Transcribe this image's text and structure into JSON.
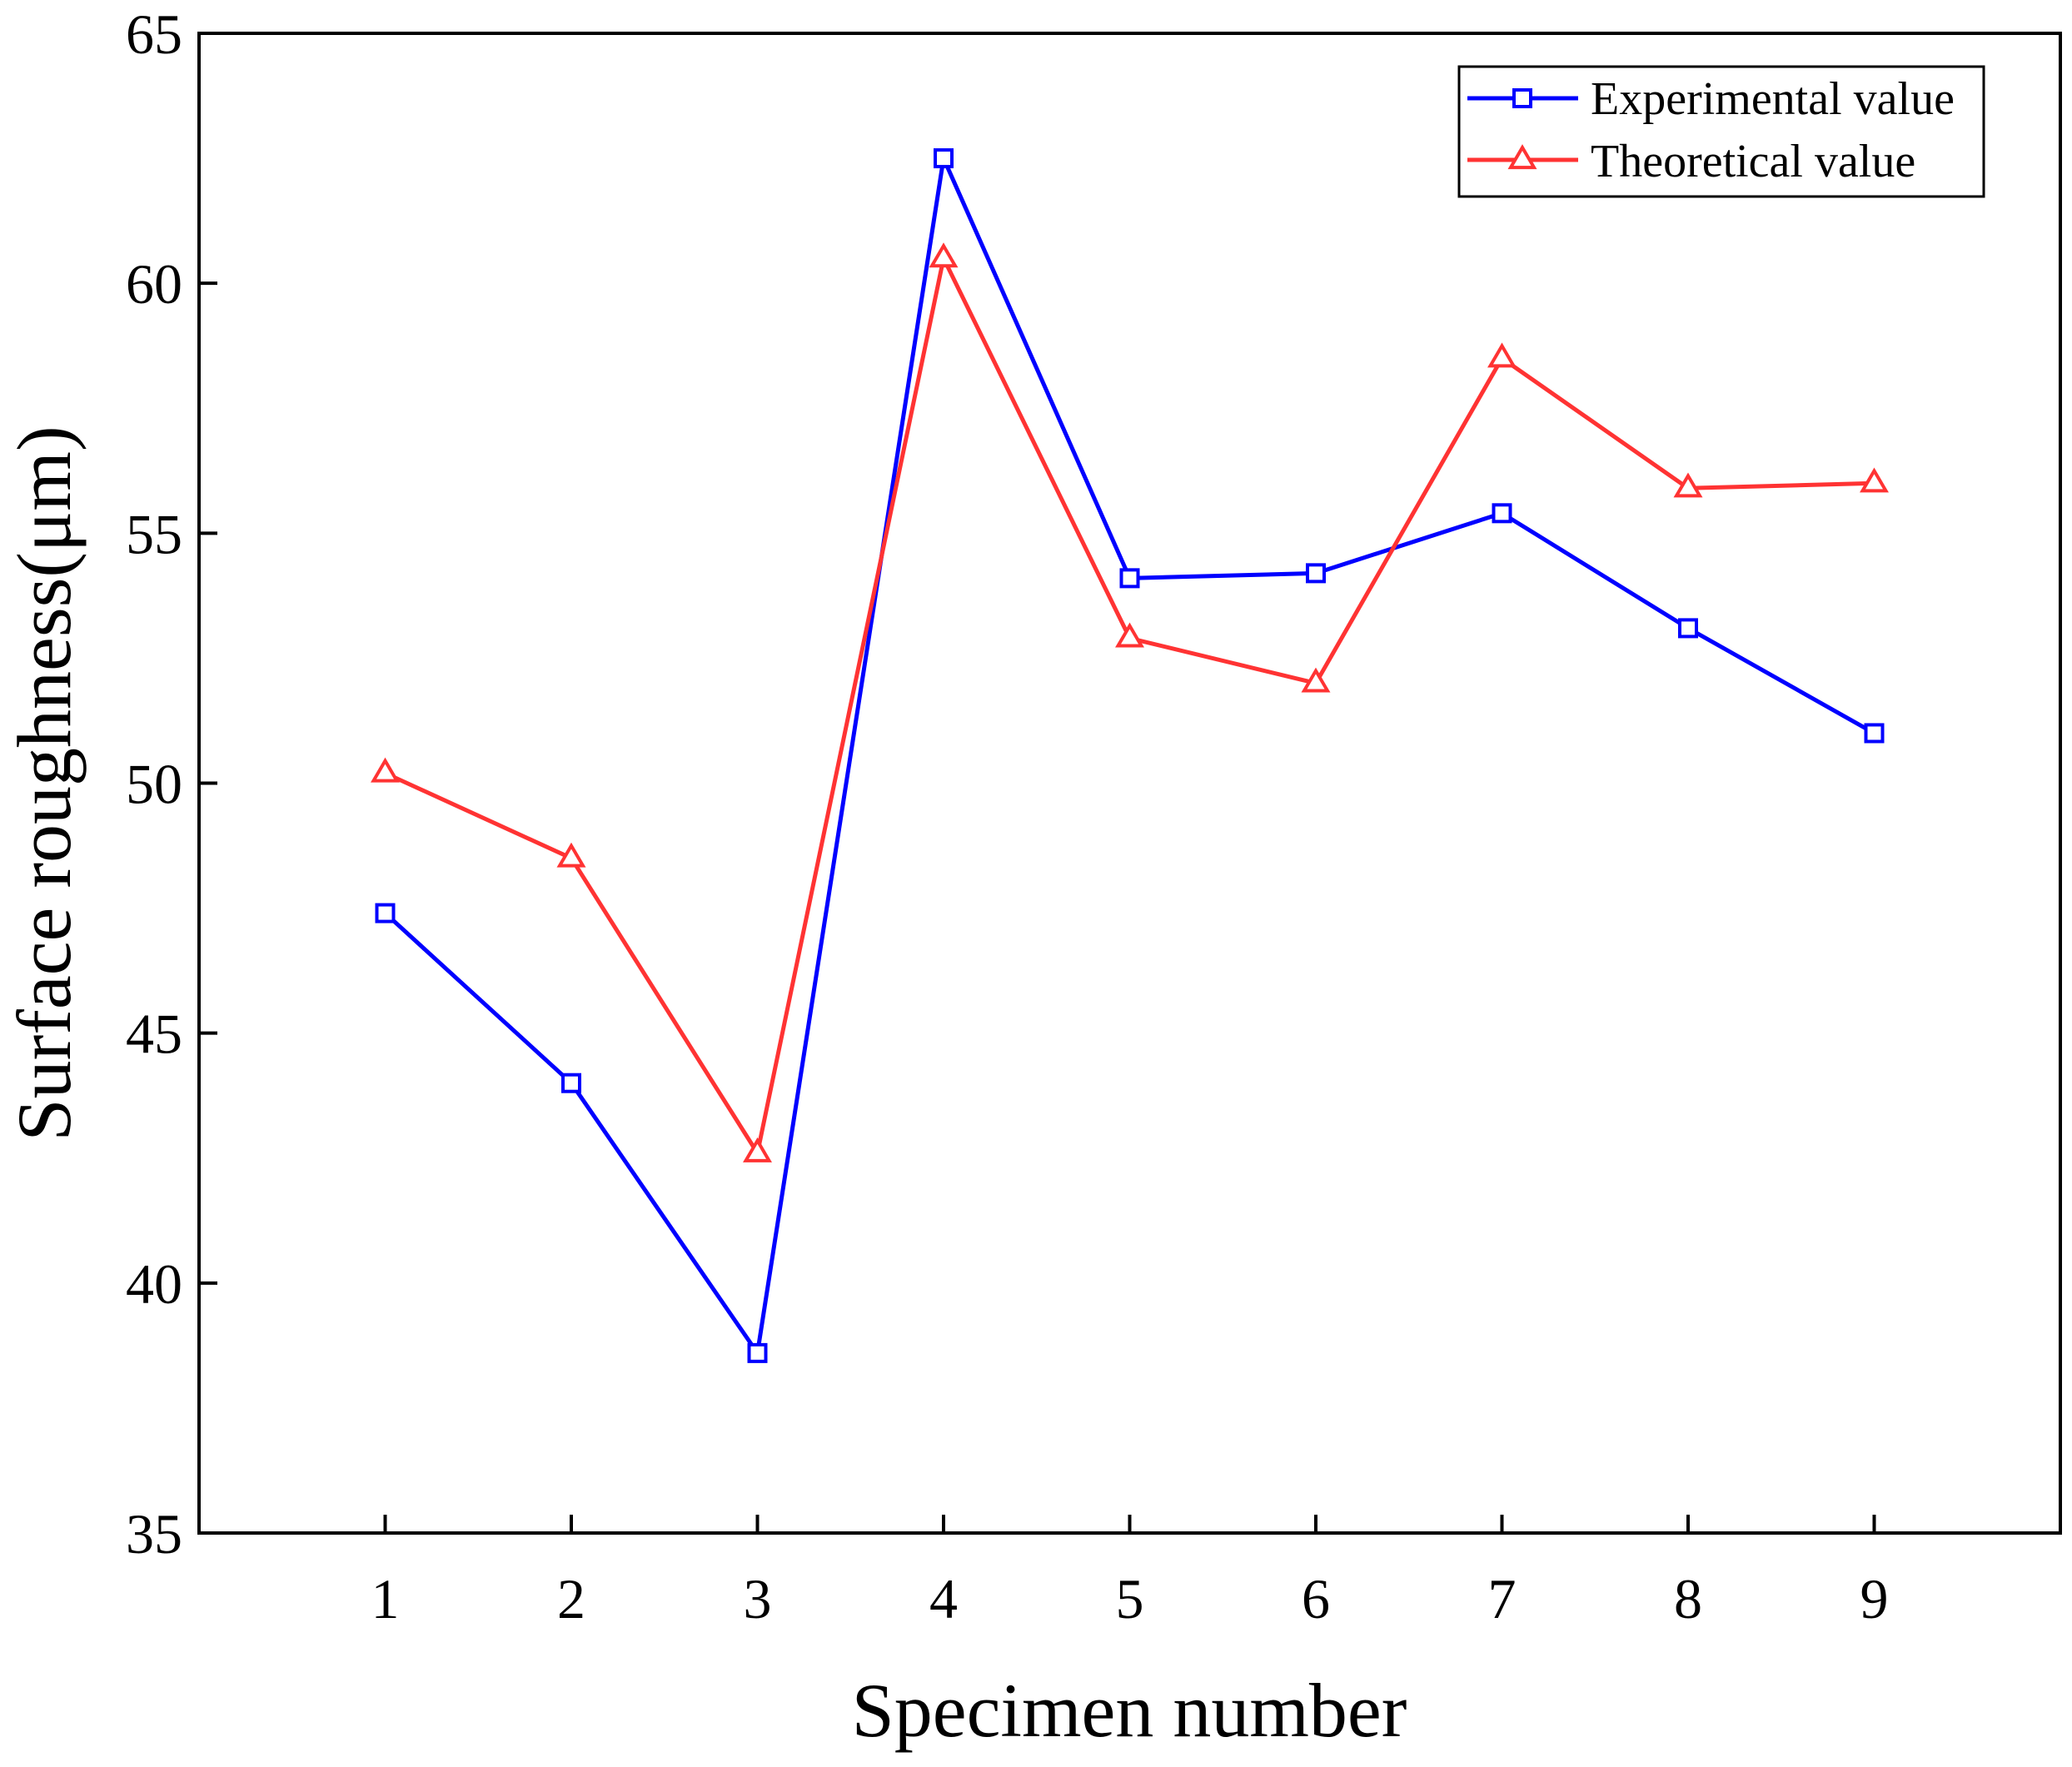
{
  "chart_data": {
    "type": "line",
    "title": "",
    "xlabel": "Specimen number",
    "ylabel": "Surface roughness(μm)",
    "x": [
      1,
      2,
      3,
      4,
      5,
      6,
      7,
      8,
      9
    ],
    "xlim": [
      0,
      10
    ],
    "ylim": [
      35,
      65
    ],
    "xticks": [
      1,
      2,
      3,
      4,
      5,
      6,
      7,
      8,
      9
    ],
    "yticks": [
      35,
      40,
      45,
      50,
      55,
      60,
      65
    ],
    "grid": false,
    "legend_position": "top-right",
    "series": [
      {
        "name": "Experimental value",
        "marker": "square",
        "color": "#0000ff",
        "values": [
          47.4,
          44.0,
          38.6,
          62.5,
          54.1,
          54.2,
          55.4,
          53.1,
          51.0
        ]
      },
      {
        "name": "Theoretical value",
        "marker": "triangle",
        "color": "#ff3333",
        "values": [
          50.2,
          48.5,
          42.6,
          60.5,
          52.9,
          52.0,
          58.5,
          55.9,
          56.0
        ]
      }
    ]
  }
}
